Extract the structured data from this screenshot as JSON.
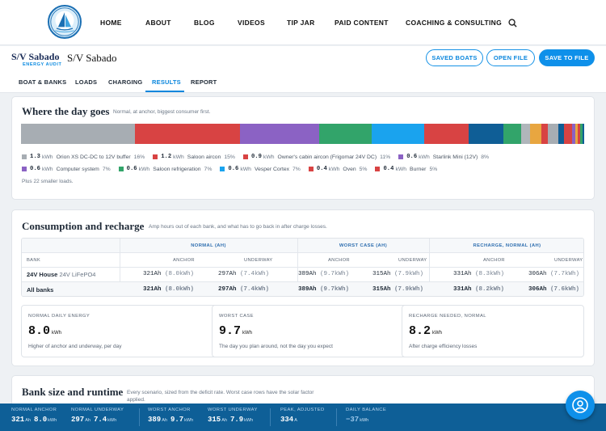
{
  "nav": {
    "items": [
      "HOME",
      "ABOUT",
      "BLOG",
      "VIDEOS",
      "TIP JAR",
      "PAID CONTENT",
      "COACHING & CONSULTING"
    ],
    "search_icon": "search-icon"
  },
  "project": {
    "brand_title": "S/V Sabado",
    "brand_sub": "ENERGY AUDIT",
    "boat_name": "S/V Sabado",
    "buttons": {
      "saved": "SAVED BOATS",
      "open": "OPEN FILE",
      "save": "SAVE TO FILE"
    }
  },
  "tabs": [
    "BOAT & BANKS",
    "LOADS",
    "CHARGING",
    "RESULTS",
    "REPORT"
  ],
  "day": {
    "title": "Where the day goes",
    "subtitle": "Normal, at anchor, biggest consumer first.",
    "segments": [
      {
        "value": 1.3,
        "color": "#a7adb3"
      },
      {
        "value": 1.2,
        "color": "#d84343"
      },
      {
        "value": 0.9,
        "color": "#8b62c4"
      },
      {
        "value": 0.6,
        "color": "#32a46a"
      },
      {
        "value": 0.6,
        "color": "#1aa3ee"
      },
      {
        "value": 0.5,
        "color": "#d84343"
      },
      {
        "value": 0.4,
        "color": "#0f5e96"
      },
      {
        "value": 0.2,
        "color": "#32a46a"
      },
      {
        "value": 0.1,
        "color": "#b0b6bb"
      },
      {
        "value": 0.13,
        "color": "#e8a640"
      },
      {
        "value": 0.08,
        "color": "#d84343"
      },
      {
        "value": 0.12,
        "color": "#a7adb3"
      },
      {
        "value": 0.06,
        "color": "#0f5e96"
      },
      {
        "value": 0.09,
        "color": "#d84343"
      },
      {
        "value": 0.04,
        "color": "#8b62c4"
      },
      {
        "value": 0.03,
        "color": "#e8a640"
      },
      {
        "value": 0.03,
        "color": "#d84343"
      },
      {
        "value": 0.02,
        "color": "#32a46a"
      },
      {
        "value": 0.02,
        "color": "#0f5e96"
      }
    ],
    "legend": [
      [
        {
          "value": "1.3",
          "unit": "kWh",
          "name": "Orion XS DC-DC to 12V buffer",
          "pct": "16%",
          "color": "#a7adb3"
        },
        {
          "value": "1.2",
          "unit": "kWh",
          "name": "Saloon aircon",
          "pct": "15%",
          "color": "#d84343"
        },
        {
          "value": "0.9",
          "unit": "kWh",
          "name": "Owner's cabin aircon (Frigomar 24V DC)",
          "pct": "11%",
          "color": "#d84343"
        },
        {
          "value": "0.6",
          "unit": "kWh",
          "name": "Starlink Mini (12V)",
          "pct": "8%",
          "color": "#8b62c4"
        }
      ],
      [
        {
          "value": "0.6",
          "unit": "kWh",
          "name": "Computer system",
          "pct": "7%",
          "color": "#8b62c4"
        },
        {
          "value": "0.6",
          "unit": "kWh",
          "name": "Saloon refrigeration",
          "pct": "7%",
          "color": "#32a46a"
        },
        {
          "value": "0.6",
          "unit": "kWh",
          "name": "Vesper Cortex",
          "pct": "7%",
          "color": "#1aa3ee"
        },
        {
          "value": "0.4",
          "unit": "kWh",
          "name": "Oven",
          "pct": "5%",
          "color": "#d84343"
        },
        {
          "value": "0.4",
          "unit": "kWh",
          "name": "Burner",
          "pct": "5%",
          "color": "#d84343"
        }
      ]
    ],
    "more": "Plus 22 smaller loads."
  },
  "consumption": {
    "title": "Consumption and recharge",
    "subtitle": "Amp hours out of each bank, and what has to go back in after charge losses.",
    "groups": [
      "NORMAL (AH)",
      "WORST CASE (AH)",
      "RECHARGE, NORMAL (AH)"
    ],
    "bank_header": "BANK",
    "col_headers": [
      "ANCHOR",
      "UNDERWAY",
      "ANCHOR",
      "UNDERWAY",
      "ANCHOR",
      "UNDERWAY"
    ],
    "rows": [
      {
        "label": "24V House",
        "chem": "24V LiFePO4",
        "cells": [
          {
            "ah": "321Ah",
            "kwh": "(8.0kWh)"
          },
          {
            "ah": "297Ah",
            "kwh": "(7.4kWh)"
          },
          {
            "ah": "389Ah",
            "kwh": "(9.7kWh)"
          },
          {
            "ah": "315Ah",
            "kwh": "(7.9kWh)"
          },
          {
            "ah": "331Ah",
            "kwh": "(8.3kWh)"
          },
          {
            "ah": "306Ah",
            "kwh": "(7.7kWh)"
          }
        ]
      },
      {
        "label": "All banks",
        "chem": "",
        "cells": [
          {
            "ah": "321Ah",
            "kwh": "(8.0kWh)"
          },
          {
            "ah": "297Ah",
            "kwh": "(7.4kWh)"
          },
          {
            "ah": "389Ah",
            "kwh": "(9.7kWh)"
          },
          {
            "ah": "315Ah",
            "kwh": "(7.9kWh)"
          },
          {
            "ah": "331Ah",
            "kwh": "(8.2kWh)"
          },
          {
            "ah": "306Ah",
            "kwh": "(7.6kWh)"
          }
        ]
      }
    ],
    "stats": [
      {
        "label": "NORMAL DAILY ENERGY",
        "value": "8.0",
        "unit": "kWh",
        "desc": "Higher of anchor and underway, per day"
      },
      {
        "label": "WORST CASE",
        "value": "9.7",
        "unit": "kWh",
        "desc": "The day you plan around, not the day you expect"
      },
      {
        "label": "RECHARGE NEEDED, NORMAL",
        "value": "8.2",
        "unit": "kWh",
        "desc": "After charge efficiency losses"
      }
    ]
  },
  "bank_size": {
    "title": "Bank size and runtime",
    "subtitle_1": "Every scenario, sized from the deficit rate. Worst case rows have the solar factor",
    "subtitle_2": "applied."
  },
  "bottom": {
    "normal_anchor": {
      "label": "NORMAL ANCHOR",
      "ah": "321",
      "ah_unit": "Ah",
      "kwh": "8.0",
      "kwh_unit": "kWh"
    },
    "normal_underway": {
      "label": "NORMAL UNDERWAY",
      "ah": "297",
      "ah_unit": "Ah",
      "kwh": "7.4",
      "kwh_unit": "kWh"
    },
    "worst_anchor": {
      "label": "WORST ANCHOR",
      "ah": "389",
      "ah_unit": "Ah",
      "kwh": "9.7",
      "kwh_unit": "kWh"
    },
    "worst_underway": {
      "label": "WORST UNDERWAY",
      "ah": "315",
      "ah_unit": "Ah",
      "kwh": "7.9",
      "kwh_unit": "kWh"
    },
    "peak": {
      "label": "PEAK, ADJUSTED",
      "value": "334",
      "unit": "A"
    },
    "balance": {
      "label": "DAILY BALANCE",
      "value": "−37",
      "unit": "kWh"
    }
  },
  "fab_icon": "user-support-icon"
}
